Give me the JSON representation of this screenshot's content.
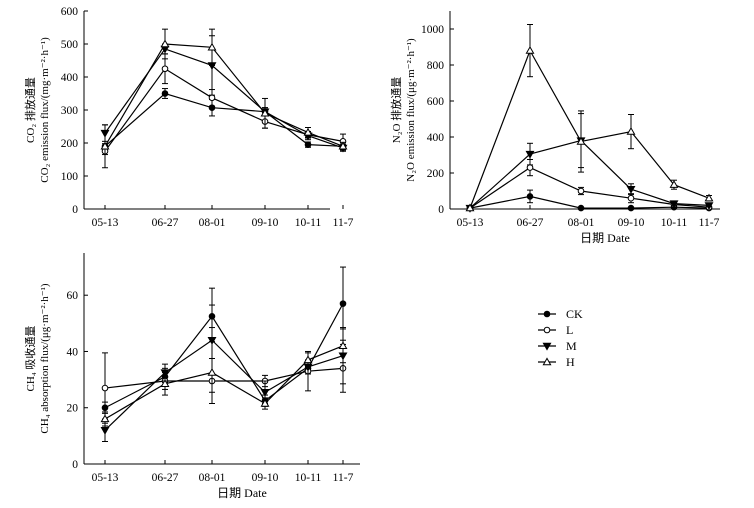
{
  "chart_data": [
    {
      "id": "co2",
      "type": "line",
      "ylabel_cn": "CO₂ 排放通量",
      "ylabel_en": "CO₂ emission flux/(mg·m⁻²·h⁻¹)",
      "xlabel": "",
      "categories": [
        "05-13",
        "06-27",
        "08-01",
        "09-10",
        "10-11",
        "11-7"
      ],
      "ylim": [
        0,
        600
      ],
      "yticks": [
        0,
        100,
        200,
        300,
        400,
        500,
        600
      ],
      "series": [
        {
          "name": "CK",
          "values": [
            190,
            350,
            307,
            295,
            195,
            190
          ],
          "err": [
            8,
            15,
            25,
            12,
            8,
            10
          ]
        },
        {
          "name": "L",
          "values": [
            175,
            425,
            337,
            265,
            225,
            205
          ],
          "err": [
            10,
            45,
            25,
            20,
            10,
            22
          ]
        },
        {
          "name": "M",
          "values": [
            230,
            485,
            435,
            295,
            222,
            185
          ],
          "err": [
            25,
            15,
            90,
            12,
            12,
            10
          ]
        },
        {
          "name": "H",
          "values": [
            190,
            500,
            490,
            290,
            232,
            190
          ],
          "err": [
            65,
            45,
            55,
            45,
            15,
            12
          ]
        }
      ]
    },
    {
      "id": "n2o",
      "type": "line",
      "ylabel_cn": "N₂O 排放通量",
      "ylabel_en": "N₂O emission flux/(μg·m⁻²·h⁻¹)",
      "xlabel": "日期 Date",
      "categories": [
        "05-13",
        "06-27",
        "08-01",
        "09-10",
        "10-11",
        "11-7"
      ],
      "ylim": [
        0,
        1100
      ],
      "yticks": [
        0,
        200,
        400,
        600,
        800,
        1000
      ],
      "series": [
        {
          "name": "CK",
          "values": [
            5,
            70,
            5,
            5,
            10,
            5
          ],
          "err": [
            5,
            35,
            3,
            3,
            3,
            3
          ]
        },
        {
          "name": "L",
          "values": [
            5,
            230,
            100,
            60,
            25,
            10
          ],
          "err": [
            5,
            45,
            20,
            25,
            8,
            5
          ]
        },
        {
          "name": "M",
          "values": [
            5,
            305,
            380,
            110,
            30,
            20
          ],
          "err": [
            5,
            60,
            150,
            30,
            10,
            8
          ]
        },
        {
          "name": "H",
          "values": [
            5,
            880,
            375,
            430,
            135,
            60
          ],
          "err": [
            5,
            145,
            170,
            95,
            25,
            15
          ]
        }
      ]
    },
    {
      "id": "ch4",
      "type": "line",
      "ylabel_cn": "CH₄ 吸收通量",
      "ylabel_en": "CH₄ absorption flux/(μg·m⁻²·h⁻¹)",
      "xlabel": "日期 Date",
      "categories": [
        "05-13",
        "06-27",
        "08-01",
        "09-10",
        "10-11",
        "11-7"
      ],
      "ylim": [
        0,
        75
      ],
      "yticks": [
        0,
        20,
        40,
        60
      ],
      "series": [
        {
          "name": "CK",
          "values": [
            20,
            31,
            52.5,
            22.5,
            34,
            57
          ],
          "err": [
            2,
            3,
            4,
            2,
            2,
            13
          ]
        },
        {
          "name": "L",
          "values": [
            27,
            29.5,
            29.5,
            29.5,
            33,
            34
          ],
          "err": [
            12.5,
            3,
            8,
            2,
            7,
            8.5
          ]
        },
        {
          "name": "M",
          "values": [
            12,
            32.5,
            44,
            25.5,
            34.5,
            38.5
          ],
          "err": [
            4,
            3,
            18.5,
            4,
            2.5,
            10
          ]
        },
        {
          "name": "H",
          "values": [
            16,
            28.5,
            32.5,
            21.5,
            37,
            42
          ],
          "err": [
            2.5,
            4,
            11,
            2,
            2.5,
            6
          ]
        }
      ]
    }
  ],
  "legend": {
    "placement": "right of bottom panel",
    "items": [
      {
        "name": "CK",
        "marker": "circle",
        "fill": "#000000"
      },
      {
        "name": "L",
        "marker": "circle",
        "fill": "#ffffff"
      },
      {
        "name": "M",
        "marker": "triangle-down",
        "fill": "#000000"
      },
      {
        "name": "H",
        "marker": "triangle-up",
        "fill": "#ffffff"
      }
    ]
  },
  "colors": {
    "line": "#000000",
    "background": "#ffffff"
  }
}
